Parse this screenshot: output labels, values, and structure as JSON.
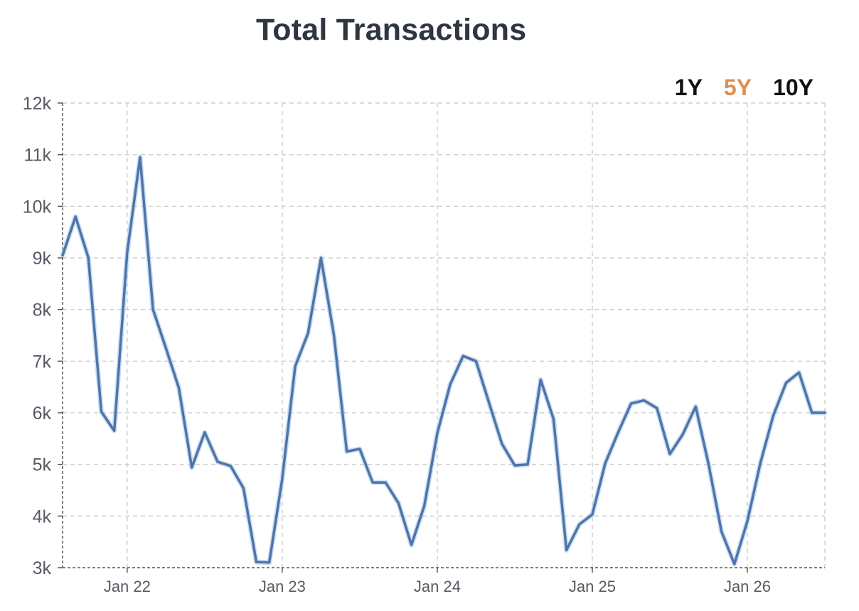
{
  "chart_data": {
    "type": "line",
    "title": "Total Transactions",
    "range_options": [
      "1Y",
      "5Y",
      "10Y"
    ],
    "active_range": "5Y",
    "xlabel": "",
    "ylabel": "",
    "ylim": [
      3000,
      12000
    ],
    "y_ticks": [
      3000,
      4000,
      5000,
      6000,
      7000,
      8000,
      9000,
      10000,
      11000,
      12000
    ],
    "y_tick_labels": [
      "3k",
      "4k",
      "5k",
      "6k",
      "7k",
      "8k",
      "9k",
      "10k",
      "11k",
      "12k"
    ],
    "xlim": [
      "2021-08",
      "2026-07"
    ],
    "x_ticks": [
      "2022-01",
      "2023-01",
      "2024-01",
      "2025-01",
      "2026-01"
    ],
    "x_tick_labels": [
      "Jan 22",
      "Jan 23",
      "Jan 24",
      "Jan 25",
      "Jan 26"
    ],
    "grid": true,
    "series": [
      {
        "color": "#4f74a6",
        "x": [
          "2021-08",
          "2021-09",
          "2021-10",
          "2021-11",
          "2021-12",
          "2022-01",
          "2022-02",
          "2022-03",
          "2022-04",
          "2022-05",
          "2022-06",
          "2022-07",
          "2022-08",
          "2022-09",
          "2022-10",
          "2022-11",
          "2022-12",
          "2023-01",
          "2023-02",
          "2023-03",
          "2023-04",
          "2023-05",
          "2023-06",
          "2023-07",
          "2023-08",
          "2023-09",
          "2023-10",
          "2023-11",
          "2023-12",
          "2024-01",
          "2024-02",
          "2024-03",
          "2024-04",
          "2024-05",
          "2024-06",
          "2024-07",
          "2024-08",
          "2024-09",
          "2024-10",
          "2024-11",
          "2024-12",
          "2025-01",
          "2025-02",
          "2025-03",
          "2025-04",
          "2025-05",
          "2025-06",
          "2025-07",
          "2025-08",
          "2025-09",
          "2025-10",
          "2025-11",
          "2025-12",
          "2026-01",
          "2026-02",
          "2026-03",
          "2026-04",
          "2026-05",
          "2026-06",
          "2026-07"
        ],
        "values": [
          9050,
          9800,
          9000,
          6020,
          5650,
          9100,
          10950,
          8000,
          7250,
          6480,
          4940,
          5620,
          5050,
          4970,
          4540,
          3110,
          3100,
          4720,
          6900,
          7540,
          9000,
          7500,
          5250,
          5300,
          4650,
          4650,
          4250,
          3440,
          4200,
          5600,
          6550,
          7100,
          7000,
          6200,
          5400,
          4980,
          5000,
          6640,
          5880,
          3340,
          3840,
          4030,
          5020,
          5620,
          6180,
          6240,
          6090,
          5200,
          5580,
          6120,
          5000,
          3700,
          3070,
          3900,
          5020,
          5940,
          6580,
          6780,
          6000,
          6000
        ]
      }
    ]
  }
}
